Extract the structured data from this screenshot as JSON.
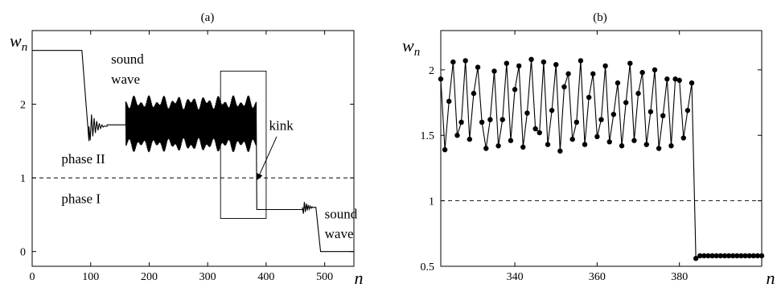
{
  "chart_data": [
    {
      "type": "line",
      "panel_label": "(a)",
      "xlabel": "n",
      "ylabel": "w",
      "ylabel_sub": "n",
      "xlim": [
        0,
        550
      ],
      "ylim": [
        -0.2,
        3.0
      ],
      "x_ticks": [
        0,
        100,
        200,
        300,
        400,
        500
      ],
      "x_tick_labels": [
        "0",
        "100",
        "200",
        "300",
        "400",
        "500"
      ],
      "y_ticks": [
        0,
        1,
        2
      ],
      "y_tick_labels": [
        "0",
        "1",
        "2"
      ],
      "dashed_line_y": 1,
      "zoom_box": {
        "x": [
          322,
          400
        ],
        "y": [
          0.45,
          2.45
        ]
      },
      "annotations": [
        {
          "text": "sound",
          "x": 135,
          "y": 2.55
        },
        {
          "text": "wave",
          "x": 135,
          "y": 2.28
        },
        {
          "text": "phase II",
          "x": 50,
          "y": 1.2
        },
        {
          "text": "phase I",
          "x": 50,
          "y": 0.66
        },
        {
          "text": "kink",
          "x": 405,
          "y": 1.65
        },
        {
          "text": "sound",
          "x": 500,
          "y": 0.45
        },
        {
          "text": "wave",
          "x": 500,
          "y": 0.18
        }
      ],
      "kink_arrow": {
        "from": [
          418,
          1.56
        ],
        "to": [
          385,
          0.98
        ]
      },
      "series": [
        {
          "segments": [
            {
              "kind": "plateau",
              "x": [
                0,
                85
              ],
              "y": 2.73
            },
            {
              "kind": "drop",
              "x": [
                85,
                97
              ],
              "y": [
                2.73,
                1.5
              ]
            },
            {
              "kind": "ringing",
              "x": [
                97,
                128
              ],
              "y_center": 1.7,
              "amplitude": 0.22
            },
            {
              "kind": "plateau",
              "x": [
                128,
                160
              ],
              "y": 1.72
            },
            {
              "kind": "oscillation_band",
              "x": [
                160,
                383
              ],
              "y_min": 1.35,
              "y_max": 2.12
            },
            {
              "kind": "drop",
              "x": [
                383,
                384
              ],
              "y": [
                1.9,
                0.57
              ]
            },
            {
              "kind": "plateau",
              "x": [
                384,
                462
              ],
              "y": 0.57
            },
            {
              "kind": "ringing",
              "x": [
                462,
                485
              ],
              "y_center": 0.6,
              "amplitude": 0.1
            },
            {
              "kind": "drop",
              "x": [
                485,
                493
              ],
              "y": [
                0.6,
                0.0
              ]
            },
            {
              "kind": "plateau",
              "x": [
                493,
                550
              ],
              "y": 0.0
            }
          ]
        }
      ]
    },
    {
      "type": "line",
      "panel_label": "(b)",
      "xlabel": "n",
      "ylabel": "w",
      "ylabel_sub": "n",
      "xlim": [
        322,
        400
      ],
      "ylim": [
        0.5,
        2.3
      ],
      "x_ticks": [
        340,
        360,
        380
      ],
      "x_tick_labels": [
        "340",
        "360",
        "380"
      ],
      "y_ticks": [
        0.5,
        1,
        1.5,
        2
      ],
      "y_tick_labels": [
        "0.5",
        "1",
        "1.5",
        "2"
      ],
      "dashed_line_y": 1,
      "series": [
        {
          "markers": true,
          "x": [
            322,
            323,
            324,
            325,
            326,
            327,
            328,
            329,
            330,
            331,
            332,
            333,
            334,
            335,
            336,
            337,
            338,
            339,
            340,
            341,
            342,
            343,
            344,
            345,
            346,
            347,
            348,
            349,
            350,
            351,
            352,
            353,
            354,
            355,
            356,
            357,
            358,
            359,
            360,
            361,
            362,
            363,
            364,
            365,
            366,
            367,
            368,
            369,
            370,
            371,
            372,
            373,
            374,
            375,
            376,
            377,
            378,
            379,
            380,
            381,
            382,
            383,
            384,
            385,
            386,
            387,
            388,
            389,
            390,
            391,
            392,
            393,
            394,
            395,
            396,
            397,
            398,
            399,
            400
          ],
          "y": [
            1.93,
            1.39,
            1.76,
            2.06,
            1.5,
            1.6,
            2.07,
            1.47,
            1.82,
            2.02,
            1.6,
            1.4,
            1.62,
            1.99,
            1.42,
            1.62,
            2.05,
            1.46,
            1.85,
            2.03,
            1.41,
            1.67,
            2.08,
            1.55,
            1.52,
            2.06,
            1.43,
            1.69,
            2.04,
            1.38,
            1.87,
            1.97,
            1.47,
            1.6,
            2.07,
            1.43,
            1.79,
            1.97,
            1.49,
            1.62,
            2.03,
            1.45,
            1.66,
            1.9,
            1.42,
            1.75,
            2.05,
            1.46,
            1.82,
            1.98,
            1.43,
            1.68,
            2.0,
            1.4,
            1.65,
            1.93,
            1.42,
            1.93,
            1.92,
            1.48,
            1.69,
            1.9,
            0.56,
            0.58,
            0.58,
            0.58,
            0.58,
            0.58,
            0.58,
            0.58,
            0.58,
            0.58,
            0.58,
            0.58,
            0.58,
            0.58,
            0.58,
            0.58,
            0.58
          ]
        }
      ]
    }
  ]
}
